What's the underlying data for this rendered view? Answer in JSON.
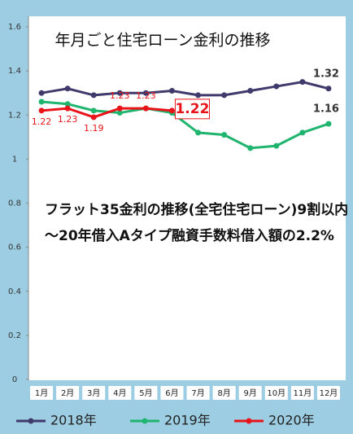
{
  "chart_data": {
    "type": "line",
    "title": "年月ごと住宅ローン金利の推移",
    "annotations": [
      "フラット35金利の推移(全宅住宅ローン)9割以内",
      "～20年借入Aタイプ融資手数料借入額の2.2%"
    ],
    "categories": [
      "1月",
      "2月",
      "3月",
      "4月",
      "5月",
      "6月",
      "7月",
      "8月",
      "9月",
      "10月",
      "11月",
      "12月"
    ],
    "series": [
      {
        "name": "2018年",
        "color": "#3f3a6b",
        "data_labels": "last",
        "values": [
          1.3,
          1.32,
          1.29,
          1.3,
          1.3,
          1.31,
          1.29,
          1.29,
          1.31,
          1.33,
          1.35,
          1.32
        ]
      },
      {
        "name": "2019年",
        "color": "#1fb56e",
        "data_labels": "last",
        "values": [
          1.26,
          1.25,
          1.22,
          1.21,
          1.23,
          1.21,
          1.12,
          1.11,
          1.05,
          1.06,
          1.12,
          1.16
        ]
      },
      {
        "name": "2020年",
        "color": "#e8141a",
        "data_labels": "all",
        "values": [
          1.22,
          1.23,
          1.19,
          1.23,
          1.23,
          1.22,
          null,
          null,
          null,
          null,
          null,
          null
        ]
      }
    ],
    "ylim": [
      0,
      1.6
    ],
    "yticks": [
      0,
      0.2,
      0.4,
      0.6,
      0.8,
      1,
      1.2,
      1.4,
      1.6
    ],
    "grid": false,
    "legend": "bottom"
  }
}
